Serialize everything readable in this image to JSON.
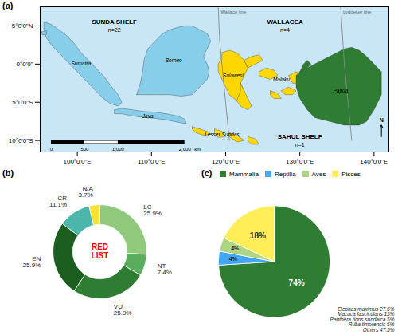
{
  "chart_data": [
    {
      "type": "map",
      "title": "(a)",
      "xlim": [
        95,
        142
      ],
      "ylim": [
        -11.5,
        7.5
      ],
      "xticks": [
        {
          "value": 100,
          "label": "100°0'0\"E"
        },
        {
          "value": 110,
          "label": "110°0'0\"E"
        },
        {
          "value": 120,
          "label": "120°0'0\"E"
        },
        {
          "value": 130,
          "label": "130°0'0\"E"
        },
        {
          "value": 140,
          "label": "140°0'0\"E"
        }
      ],
      "yticks": [
        {
          "value": -10,
          "label": "10°0'0\"S"
        },
        {
          "value": -5,
          "label": "5°0'0\"S"
        },
        {
          "value": 0,
          "label": "0°0'0\""
        },
        {
          "value": 5,
          "label": "5°0'0\"N"
        }
      ],
      "sea_color": "#C8E6F5",
      "areas": [
        {
          "name": "SUNDA SHELF",
          "label": "n=22",
          "x": 105.0,
          "y": 5.5,
          "color": "#87CEEB",
          "polygons": [
            [
              [
                95.5,
                5.5
              ],
              [
                96.5,
                5.2
              ],
              [
                97.5,
                4.5
              ],
              [
                98.5,
                3.8
              ],
              [
                99.5,
                2.8
              ],
              [
                100.5,
                1.5
              ],
              [
                101.5,
                0.5
              ],
              [
                102.5,
                -0.5
              ],
              [
                103.5,
                -1.5
              ],
              [
                104.5,
                -2.8
              ],
              [
                105.5,
                -4.0
              ],
              [
                106.0,
                -5.0
              ],
              [
                105.5,
                -5.5
              ],
              [
                104.5,
                -5.2
              ],
              [
                103.5,
                -4.5
              ],
              [
                102.5,
                -3.5
              ],
              [
                101.5,
                -2.5
              ],
              [
                100.5,
                -1.5
              ],
              [
                99.5,
                -0.5
              ],
              [
                98.5,
                0.5
              ],
              [
                97.5,
                1.5
              ],
              [
                96.5,
                2.5
              ],
              [
                95.8,
                3.5
              ],
              [
                95.5,
                4.5
              ],
              [
                95.5,
                5.5
              ]
            ],
            [
              [
                95.2,
                4.2
              ],
              [
                95.8,
                4.4
              ],
              [
                95.9,
                3.9
              ],
              [
                95.3,
                3.8
              ],
              [
                95.2,
                4.2
              ]
            ],
            [
              [
                105.0,
                -6.0
              ],
              [
                106.0,
                -5.8
              ],
              [
                107.5,
                -6.0
              ],
              [
                109.0,
                -6.2
              ],
              [
                110.5,
                -6.3
              ],
              [
                112.0,
                -6.5
              ],
              [
                113.5,
                -6.8
              ],
              [
                114.5,
                -7.2
              ],
              [
                114.7,
                -7.8
              ],
              [
                113.5,
                -7.6
              ],
              [
                112.0,
                -7.3
              ],
              [
                110.5,
                -7.1
              ],
              [
                109.0,
                -7.0
              ],
              [
                107.5,
                -6.8
              ],
              [
                106.0,
                -6.5
              ],
              [
                105.0,
                -6.5
              ],
              [
                105.0,
                -6.0
              ]
            ],
            [
              [
                108.0,
                -4.0
              ],
              [
                108.5,
                -2.5
              ],
              [
                108.8,
                -1.0
              ],
              [
                109.0,
                0.5
              ],
              [
                109.5,
                2.0
              ],
              [
                110.5,
                3.0
              ],
              [
                111.5,
                4.0
              ],
              [
                112.5,
                4.5
              ],
              [
                113.5,
                4.8
              ],
              [
                114.5,
                5.0
              ],
              [
                115.5,
                5.0
              ],
              [
                116.5,
                4.5
              ],
              [
                117.5,
                4.0
              ],
              [
                118.0,
                3.0
              ],
              [
                117.5,
                2.0
              ],
              [
                117.0,
                1.0
              ],
              [
                117.5,
                0.0
              ],
              [
                117.8,
                -1.0
              ],
              [
                117.5,
                -2.0
              ],
              [
                116.5,
                -3.0
              ],
              [
                115.5,
                -4.0
              ],
              [
                114.0,
                -4.2
              ],
              [
                112.5,
                -4.0
              ],
              [
                111.0,
                -4.0
              ],
              [
                109.5,
                -4.0
              ],
              [
                108.5,
                -4.0
              ],
              [
                108.0,
                -4.0
              ]
            ]
          ]
        },
        {
          "name": "WALLACEA",
          "label": "n=4",
          "x": 128.0,
          "y": 5.5,
          "color": "#FFD700",
          "polygons": [
            [
              [
                119.5,
                1.5
              ],
              [
                120.5,
                1.8
              ],
              [
                121.5,
                1.5
              ],
              [
                122.5,
                0.5
              ],
              [
                123.0,
                -0.5
              ],
              [
                122.5,
                -1.5
              ],
              [
                122.0,
                -2.5
              ],
              [
                122.5,
                -3.5
              ],
              [
                122.5,
                -4.5
              ],
              [
                121.5,
                -4.8
              ],
              [
                120.5,
                -4.0
              ],
              [
                120.0,
                -3.0
              ],
              [
                119.5,
                -2.0
              ],
              [
                119.0,
                -1.0
              ],
              [
                119.0,
                0.0
              ],
              [
                119.5,
                1.0
              ],
              [
                119.5,
                1.5
              ]
            ],
            [
              [
                122.5,
                0.5
              ],
              [
                123.5,
                1.0
              ],
              [
                124.5,
                1.2
              ],
              [
                125.0,
                0.5
              ],
              [
                124.0,
                0.0
              ],
              [
                123.0,
                -0.5
              ],
              [
                122.5,
                0.5
              ]
            ],
            [
              [
                122.0,
                -2.5
              ],
              [
                122.5,
                -3.5
              ],
              [
                123.0,
                -4.5
              ],
              [
                123.5,
                -5.5
              ],
              [
                123.0,
                -6.0
              ],
              [
                122.0,
                -5.5
              ],
              [
                121.5,
                -4.8
              ],
              [
                122.0,
                -3.5
              ],
              [
                122.0,
                -2.5
              ]
            ],
            [
              [
                115.5,
                -8.2
              ],
              [
                116.5,
                -8.5
              ],
              [
                117.5,
                -8.8
              ],
              [
                118.0,
                -9.2
              ],
              [
                117.0,
                -9.3
              ],
              [
                116.0,
                -9.0
              ],
              [
                115.5,
                -8.5
              ],
              [
                115.5,
                -8.2
              ]
            ],
            [
              [
                118.5,
                -8.5
              ],
              [
                119.5,
                -8.8
              ],
              [
                120.0,
                -9.5
              ],
              [
                119.0,
                -9.6
              ],
              [
                118.5,
                -9.0
              ],
              [
                118.5,
                -8.5
              ]
            ],
            [
              [
                120.5,
                -9.0
              ],
              [
                121.5,
                -9.3
              ],
              [
                122.5,
                -10.0
              ],
              [
                121.5,
                -10.2
              ],
              [
                120.5,
                -9.5
              ],
              [
                120.5,
                -9.0
              ]
            ],
            [
              [
                123.0,
                -9.5
              ],
              [
                124.0,
                -9.8
              ],
              [
                124.5,
                -10.5
              ],
              [
                123.5,
                -10.5
              ],
              [
                123.0,
                -10.0
              ],
              [
                123.0,
                -9.5
              ]
            ],
            [
              [
                124.5,
                -1.0
              ],
              [
                125.5,
                -0.5
              ],
              [
                126.5,
                -0.8
              ],
              [
                127.0,
                -1.5
              ],
              [
                126.0,
                -2.0
              ],
              [
                124.5,
                -1.5
              ],
              [
                124.5,
                -1.0
              ]
            ],
            [
              [
                127.5,
                -3.5
              ],
              [
                128.5,
                -3.0
              ],
              [
                129.5,
                -3.5
              ],
              [
                129.0,
                -4.0
              ],
              [
                128.0,
                -4.0
              ],
              [
                127.5,
                -3.5
              ]
            ],
            [
              [
                126.0,
                -3.5
              ],
              [
                127.0,
                -3.8
              ],
              [
                127.5,
                -4.5
              ],
              [
                126.5,
                -4.5
              ],
              [
                126.0,
                -4.0
              ],
              [
                126.0,
                -3.5
              ]
            ],
            [
              [
                128.5,
                -1.5
              ],
              [
                129.5,
                -1.0
              ],
              [
                130.5,
                -1.5
              ],
              [
                130.0,
                -2.5
              ],
              [
                129.0,
                -2.5
              ],
              [
                128.5,
                -1.5
              ]
            ]
          ]
        },
        {
          "name": "SAHUL SHELF",
          "label": "n=1",
          "x": 130.0,
          "y": -9.5,
          "color": "#2E7D32",
          "polygons": [
            [
              [
                130.0,
                -1.0
              ],
              [
                131.0,
                -0.5
              ],
              [
                132.0,
                0.0
              ],
              [
                133.0,
                0.5
              ],
              [
                134.0,
                1.0
              ],
              [
                135.0,
                1.5
              ],
              [
                136.0,
                2.0
              ],
              [
                137.0,
                2.2
              ],
              [
                138.0,
                1.8
              ],
              [
                139.0,
                1.0
              ],
              [
                140.0,
                0.0
              ],
              [
                141.0,
                -1.0
              ],
              [
                141.0,
                -4.0
              ],
              [
                140.0,
                -6.0
              ],
              [
                139.0,
                -7.5
              ],
              [
                138.0,
                -8.0
              ],
              [
                136.0,
                -8.0
              ],
              [
                134.0,
                -7.5
              ],
              [
                132.0,
                -7.0
              ],
              [
                131.0,
                -6.0
              ],
              [
                130.0,
                -4.5
              ],
              [
                129.5,
                -3.0
              ],
              [
                129.5,
                -1.5
              ],
              [
                130.0,
                -1.0
              ]
            ],
            [
              [
                130.0,
                -1.0
              ],
              [
                130.5,
                0.0
              ],
              [
                131.0,
                0.5
              ],
              [
                131.5,
                0.0
              ],
              [
                131.0,
                -0.5
              ],
              [
                130.0,
                -1.0
              ]
            ]
          ]
        }
      ],
      "lines": [
        {
          "name": "Wallace line",
          "color": "#888888",
          "x": [
            119.0,
            119.2,
            119.5,
            120.0,
            120.5
          ],
          "y": [
            7.5,
            3.0,
            0.0,
            -5.0,
            -10.0
          ]
        },
        {
          "name": "Lyddeker line",
          "color": "#888888",
          "x": [
            135.5,
            135.8,
            136.0,
            136.5,
            137.0
          ],
          "y": [
            7.5,
            3.0,
            0.0,
            -5.0,
            -10.0
          ]
        }
      ],
      "annotations": [
        {
          "text": "Sumatra",
          "x": 100.5,
          "y": 0.0
        },
        {
          "text": "Borneo",
          "x": 113.0,
          "y": 0.5
        },
        {
          "text": "Java",
          "x": 109.5,
          "y": -6.8
        },
        {
          "text": "Sulawesi",
          "x": 121.0,
          "y": -1.5
        },
        {
          "text": "Maluku",
          "x": 127.5,
          "y": -2.0
        },
        {
          "text": "Lesser Sundas",
          "x": 119.5,
          "y": -9.2
        },
        {
          "text": "Papua",
          "x": 135.5,
          "y": -3.5
        }
      ],
      "north_arrow": {
        "label": "N",
        "x": 141.0,
        "y1": -9.5,
        "y2": -8.0
      },
      "scale_bar": {
        "y": -10.2,
        "unit": "km",
        "ticks": [
          {
            "value": 0,
            "label": "0",
            "x": 96.5
          },
          {
            "value": 500,
            "label": "500",
            "x": 101.0
          },
          {
            "value": 1000,
            "label": "1,000",
            "x": 105.5
          },
          {
            "value": 2000,
            "label": "2,000",
            "x": 114.5
          }
        ]
      }
    },
    {
      "type": "donut",
      "title": "(b)",
      "categories": [
        "LC",
        "NT",
        "VU",
        "EN",
        "CR",
        "N/A"
      ],
      "values": [
        25.9,
        7.4,
        25.9,
        25.9,
        11.1,
        3.7
      ],
      "value_labels": [
        "25.9%",
        "7.4%",
        "25.9%",
        "25.9%",
        "11.1%",
        "3.7%"
      ],
      "colors": [
        "#90C97C",
        "#5BAD5E",
        "#2E7D32",
        "#1B5E20",
        "#4DB6AC",
        "#F9E231"
      ],
      "data_labels": true,
      "annotations": [
        {
          "text": "RED",
          "color": "red"
        },
        {
          "text": "LIST",
          "color": "red"
        }
      ]
    },
    {
      "type": "pie",
      "title": "(c)",
      "categories": [
        "Mammalia",
        "Reptilia",
        "Aves",
        "Pisces"
      ],
      "values": [
        74,
        4,
        4,
        18
      ],
      "value_labels": [
        "74%",
        "4%",
        "4%",
        "18%"
      ],
      "colors": [
        "#2E7D32",
        "#42A5F5",
        "#AED581",
        "#FFEE58"
      ],
      "data_labels": true,
      "legend": "top",
      "annotations": [
        {
          "text": "Elephas maximus 27.5%\nMacaca fascicularis 15%\nPanthera tigris sondaica 5%\nRusa timorensis 5%\nOthers 47.5%"
        }
      ]
    }
  ]
}
